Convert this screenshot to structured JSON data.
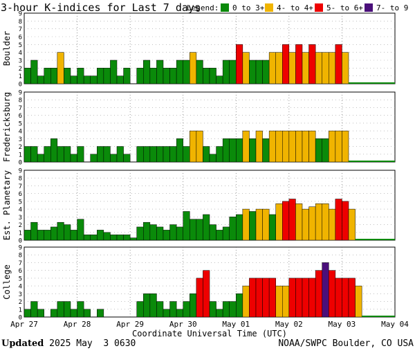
{
  "chart_data": {
    "type": "bar",
    "title": "3-hour K-indices for Last 7 days",
    "legend_title": "Legend:",
    "legend": [
      {
        "label": "0 to 3+",
        "color": "#0a8a0a"
      },
      {
        "label": "4- to 4+",
        "color": "#f0b400"
      },
      {
        "label": "5- to 6+",
        "color": "#ee0000"
      },
      {
        "label": "7- to 9",
        "color": "#4a0f7a"
      }
    ],
    "xlabel": "Coordinate Universal Time (UTC)",
    "x_ticks": [
      "Apr 27",
      "Apr 28",
      "Apr 29",
      "Apr 30",
      "May 01",
      "May 02",
      "May 03",
      "May 04"
    ],
    "bins_per_day": 8,
    "ylim": [
      0,
      9
    ],
    "y_ticks": [
      "0",
      "1",
      "2",
      "3",
      "4",
      "5",
      "6",
      "7",
      "8",
      "9"
    ],
    "series": [
      {
        "name": "Boulder",
        "values": [
          2,
          3,
          1,
          2,
          2,
          4,
          2,
          1,
          2,
          1,
          1,
          2,
          2,
          3,
          1,
          2,
          0,
          2,
          3,
          2,
          3,
          2,
          2,
          3,
          3,
          4,
          3,
          2,
          2,
          1,
          3,
          3,
          5,
          4,
          3,
          3,
          3,
          4,
          4,
          5,
          4,
          5,
          4,
          5,
          4,
          4,
          4,
          5,
          4
        ]
      },
      {
        "name": "Fredericksburg",
        "values": [
          2,
          2,
          1,
          2,
          3,
          2,
          2,
          1,
          2,
          0,
          1,
          2,
          2,
          1,
          2,
          1,
          0,
          2,
          2,
          2,
          2,
          2,
          2,
          3,
          2,
          4,
          4,
          2,
          1,
          2,
          3,
          3,
          3,
          4,
          3,
          4,
          3,
          4,
          4,
          4,
          4,
          4,
          4,
          4,
          3,
          3,
          4,
          4,
          4
        ]
      },
      {
        "name": "Est. Planetary",
        "values": [
          1.3,
          2.3,
          1.3,
          1.3,
          1.7,
          2.3,
          2.0,
          1.3,
          2.7,
          0.7,
          0.7,
          1.3,
          1.0,
          0.7,
          0.7,
          0.7,
          0.3,
          1.7,
          2.3,
          2.0,
          1.7,
          1.3,
          2.0,
          1.7,
          3.7,
          2.7,
          2.7,
          3.3,
          2.0,
          1.3,
          1.7,
          3.0,
          3.3,
          4.0,
          3.7,
          4.0,
          4.0,
          3.3,
          4.7,
          5.0,
          5.3,
          4.7,
          4.0,
          4.3,
          4.7,
          4.7,
          4.0,
          5.3,
          5.0,
          4.0
        ]
      },
      {
        "name": "College",
        "values": [
          1,
          2,
          1,
          0,
          1,
          2,
          2,
          1,
          2,
          1,
          0,
          1,
          0,
          0,
          0,
          0,
          0,
          2,
          3,
          3,
          2,
          1,
          2,
          1,
          2,
          3,
          5,
          6,
          2,
          1,
          2,
          2,
          3,
          4,
          5,
          5,
          5,
          5,
          4,
          4,
          5,
          5,
          5,
          5,
          6,
          7,
          6,
          5,
          5,
          5,
          4
        ]
      }
    ]
  },
  "footer": {
    "updated_label": "Updated",
    "updated_value": " 2025 May  3 0630",
    "credit": "NOAA/SWPC Boulder, CO USA"
  }
}
